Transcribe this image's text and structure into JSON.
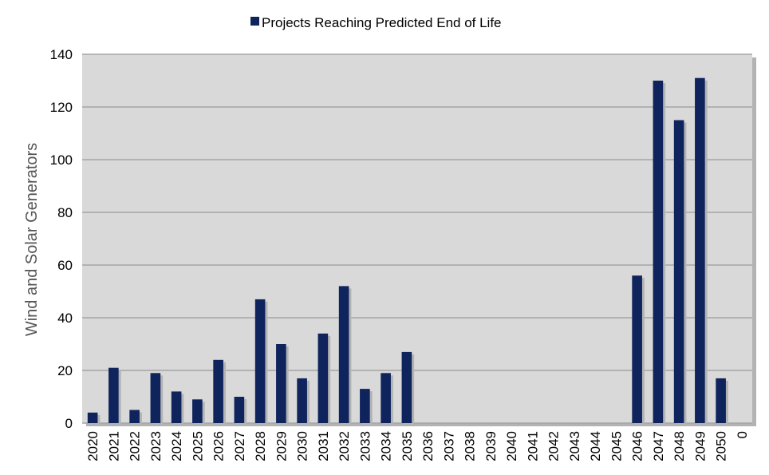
{
  "chart_data": {
    "type": "bar",
    "legend": {
      "label": "Projects Reaching Predicted End of Life",
      "position": "top"
    },
    "xlabel": "",
    "ylabel": "Wind and Solar Generators",
    "ylim": [
      0,
      140
    ],
    "yticks": [
      0,
      20,
      40,
      60,
      80,
      100,
      120,
      140
    ],
    "grid": true,
    "categories": [
      "2020",
      "2021",
      "2022",
      "2023",
      "2024",
      "2025",
      "2026",
      "2027",
      "2028",
      "2029",
      "2030",
      "2031",
      "2032",
      "2033",
      "2034",
      "2035",
      "2036",
      "2037",
      "2038",
      "2039",
      "2040",
      "2041",
      "2042",
      "2043",
      "2044",
      "2045",
      "2046",
      "2047",
      "2048",
      "2049",
      "2050",
      "0"
    ],
    "series": [
      {
        "name": "Projects Reaching Predicted End of Life",
        "values": [
          4,
          21,
          5,
          19,
          12,
          9,
          24,
          10,
          47,
          30,
          17,
          34,
          52,
          13,
          19,
          27,
          0,
          0,
          0,
          0,
          0,
          0,
          0,
          0,
          0,
          0,
          56,
          130,
          115,
          131,
          17,
          0
        ]
      }
    ],
    "colors": {
      "bar": "#0f245c",
      "plot_background": "#d9d9d9",
      "gridline": "#a6a6a6",
      "shadow": "#b3b3b3"
    }
  }
}
